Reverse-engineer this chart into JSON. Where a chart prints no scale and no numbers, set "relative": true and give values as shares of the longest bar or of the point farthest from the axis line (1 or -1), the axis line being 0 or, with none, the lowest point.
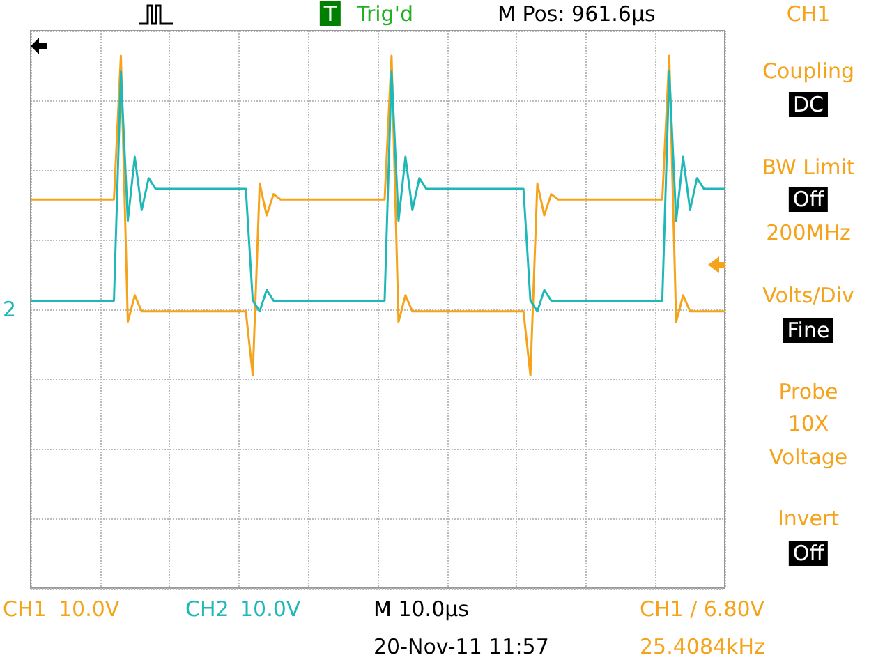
{
  "chart_data": {
    "type": "line",
    "relative": true,
    "grid": true,
    "legend": "bottom left",
    "marker": "none",
    "line_style": "solid",
    "categories": [
      null,
      null,
      null,
      null,
      null,
      null,
      null,
      null,
      null,
      null,
      null,
      null,
      null,
      null,
      null,
      null,
      null,
      null,
      null,
      null,
      null,
      null,
      null,
      null,
      null,
      null,
      null,
      null,
      null,
      null,
      null,
      null,
      null,
      null,
      null,
      null,
      null,
      null,
      null,
      null,
      null,
      null,
      null,
      null,
      null,
      null,
      null,
      null,
      null,
      null,
      null,
      null,
      null,
      null,
      null,
      null,
      null,
      null,
      null,
      null,
      null,
      null,
      null,
      null,
      null,
      null,
      null,
      null,
      null,
      null,
      null,
      null,
      null,
      null,
      null,
      null,
      null,
      null,
      null,
      null,
      null,
      null,
      null,
      null,
      null,
      null,
      null,
      null,
      null,
      null,
      null,
      null,
      null,
      null,
      null,
      null,
      null,
      null,
      null,
      null,
      null
    ],
    "annotations": [
      "T",
      "Trig'd",
      "M Pos: 961.6µs",
      "CH1",
      "Coupling",
      "DC",
      "BW Limit",
      "Off",
      "200MHz",
      "Volts/Div",
      "Fine",
      "Probe",
      "10X",
      "Voltage",
      "Invert",
      "Off",
      "10.0V",
      "10.0V",
      "M 10.0µs",
      "20-Nov-11 11:57",
      "CH1 ∕ 6.80V",
      "25.4084kHz",
      "2"
    ],
    "series": [
      {
        "name": "CH1",
        "color": "#f5a31a",
        "values": [
          0.73,
          0.73,
          0.73,
          0.73,
          0.73,
          0.73,
          0.73,
          0.73,
          0.73,
          0.73,
          0.73,
          0.73,
          0.73,
          1,
          0.5,
          0.55,
          0.52,
          0.52,
          0.52,
          0.52,
          0.52,
          0.52,
          0.52,
          0.52,
          0.52,
          0.52,
          0.52,
          0.52,
          0.52,
          0.52,
          0.52,
          0.52,
          0.4,
          0.76,
          0.7,
          0.74,
          0.73,
          0.73,
          0.73,
          0.73,
          0.73,
          0.73,
          0.73,
          0.73,
          0.73,
          0.73,
          0.73,
          0.73,
          0.73,
          0.73,
          0.73,
          0.73,
          1,
          0.5,
          0.55,
          0.52,
          0.52,
          0.52,
          0.52,
          0.52,
          0.52,
          0.52,
          0.52,
          0.52,
          0.52,
          0.52,
          0.52,
          0.52,
          0.52,
          0.52,
          0.52,
          0.52,
          0.4,
          0.76,
          0.7,
          0.74,
          0.73,
          0.73,
          0.73,
          0.73,
          0.73,
          0.73,
          0.73,
          0.73,
          0.73,
          0.73,
          0.73,
          0.73,
          0.73,
          0.73,
          0.73,
          0.73,
          1,
          0.5,
          0.55,
          0.52,
          0.52,
          0.52,
          0.52,
          0.52,
          0.52
        ]
      },
      {
        "name": "CH2",
        "color": "#1fb8b8",
        "values": [
          0.54,
          0.54,
          0.54,
          0.54,
          0.54,
          0.54,
          0.54,
          0.54,
          0.54,
          0.54,
          0.54,
          0.54,
          0.54,
          0.97,
          0.69,
          0.81,
          0.71,
          0.77,
          0.75,
          0.75,
          0.75,
          0.75,
          0.75,
          0.75,
          0.75,
          0.75,
          0.75,
          0.75,
          0.75,
          0.75,
          0.75,
          0.75,
          0.54,
          0.52,
          0.56,
          0.54,
          0.54,
          0.54,
          0.54,
          0.54,
          0.54,
          0.54,
          0.54,
          0.54,
          0.54,
          0.54,
          0.54,
          0.54,
          0.54,
          0.54,
          0.54,
          0.54,
          0.97,
          0.69,
          0.81,
          0.71,
          0.77,
          0.75,
          0.75,
          0.75,
          0.75,
          0.75,
          0.75,
          0.75,
          0.75,
          0.75,
          0.75,
          0.75,
          0.75,
          0.75,
          0.75,
          0.75,
          0.54,
          0.52,
          0.56,
          0.54,
          0.54,
          0.54,
          0.54,
          0.54,
          0.54,
          0.54,
          0.54,
          0.54,
          0.54,
          0.54,
          0.54,
          0.54,
          0.54,
          0.54,
          0.54,
          0.54,
          0.97,
          0.69,
          0.81,
          0.71,
          0.77,
          0.75,
          0.75,
          0.75,
          0.75
        ]
      }
    ]
  }
}
